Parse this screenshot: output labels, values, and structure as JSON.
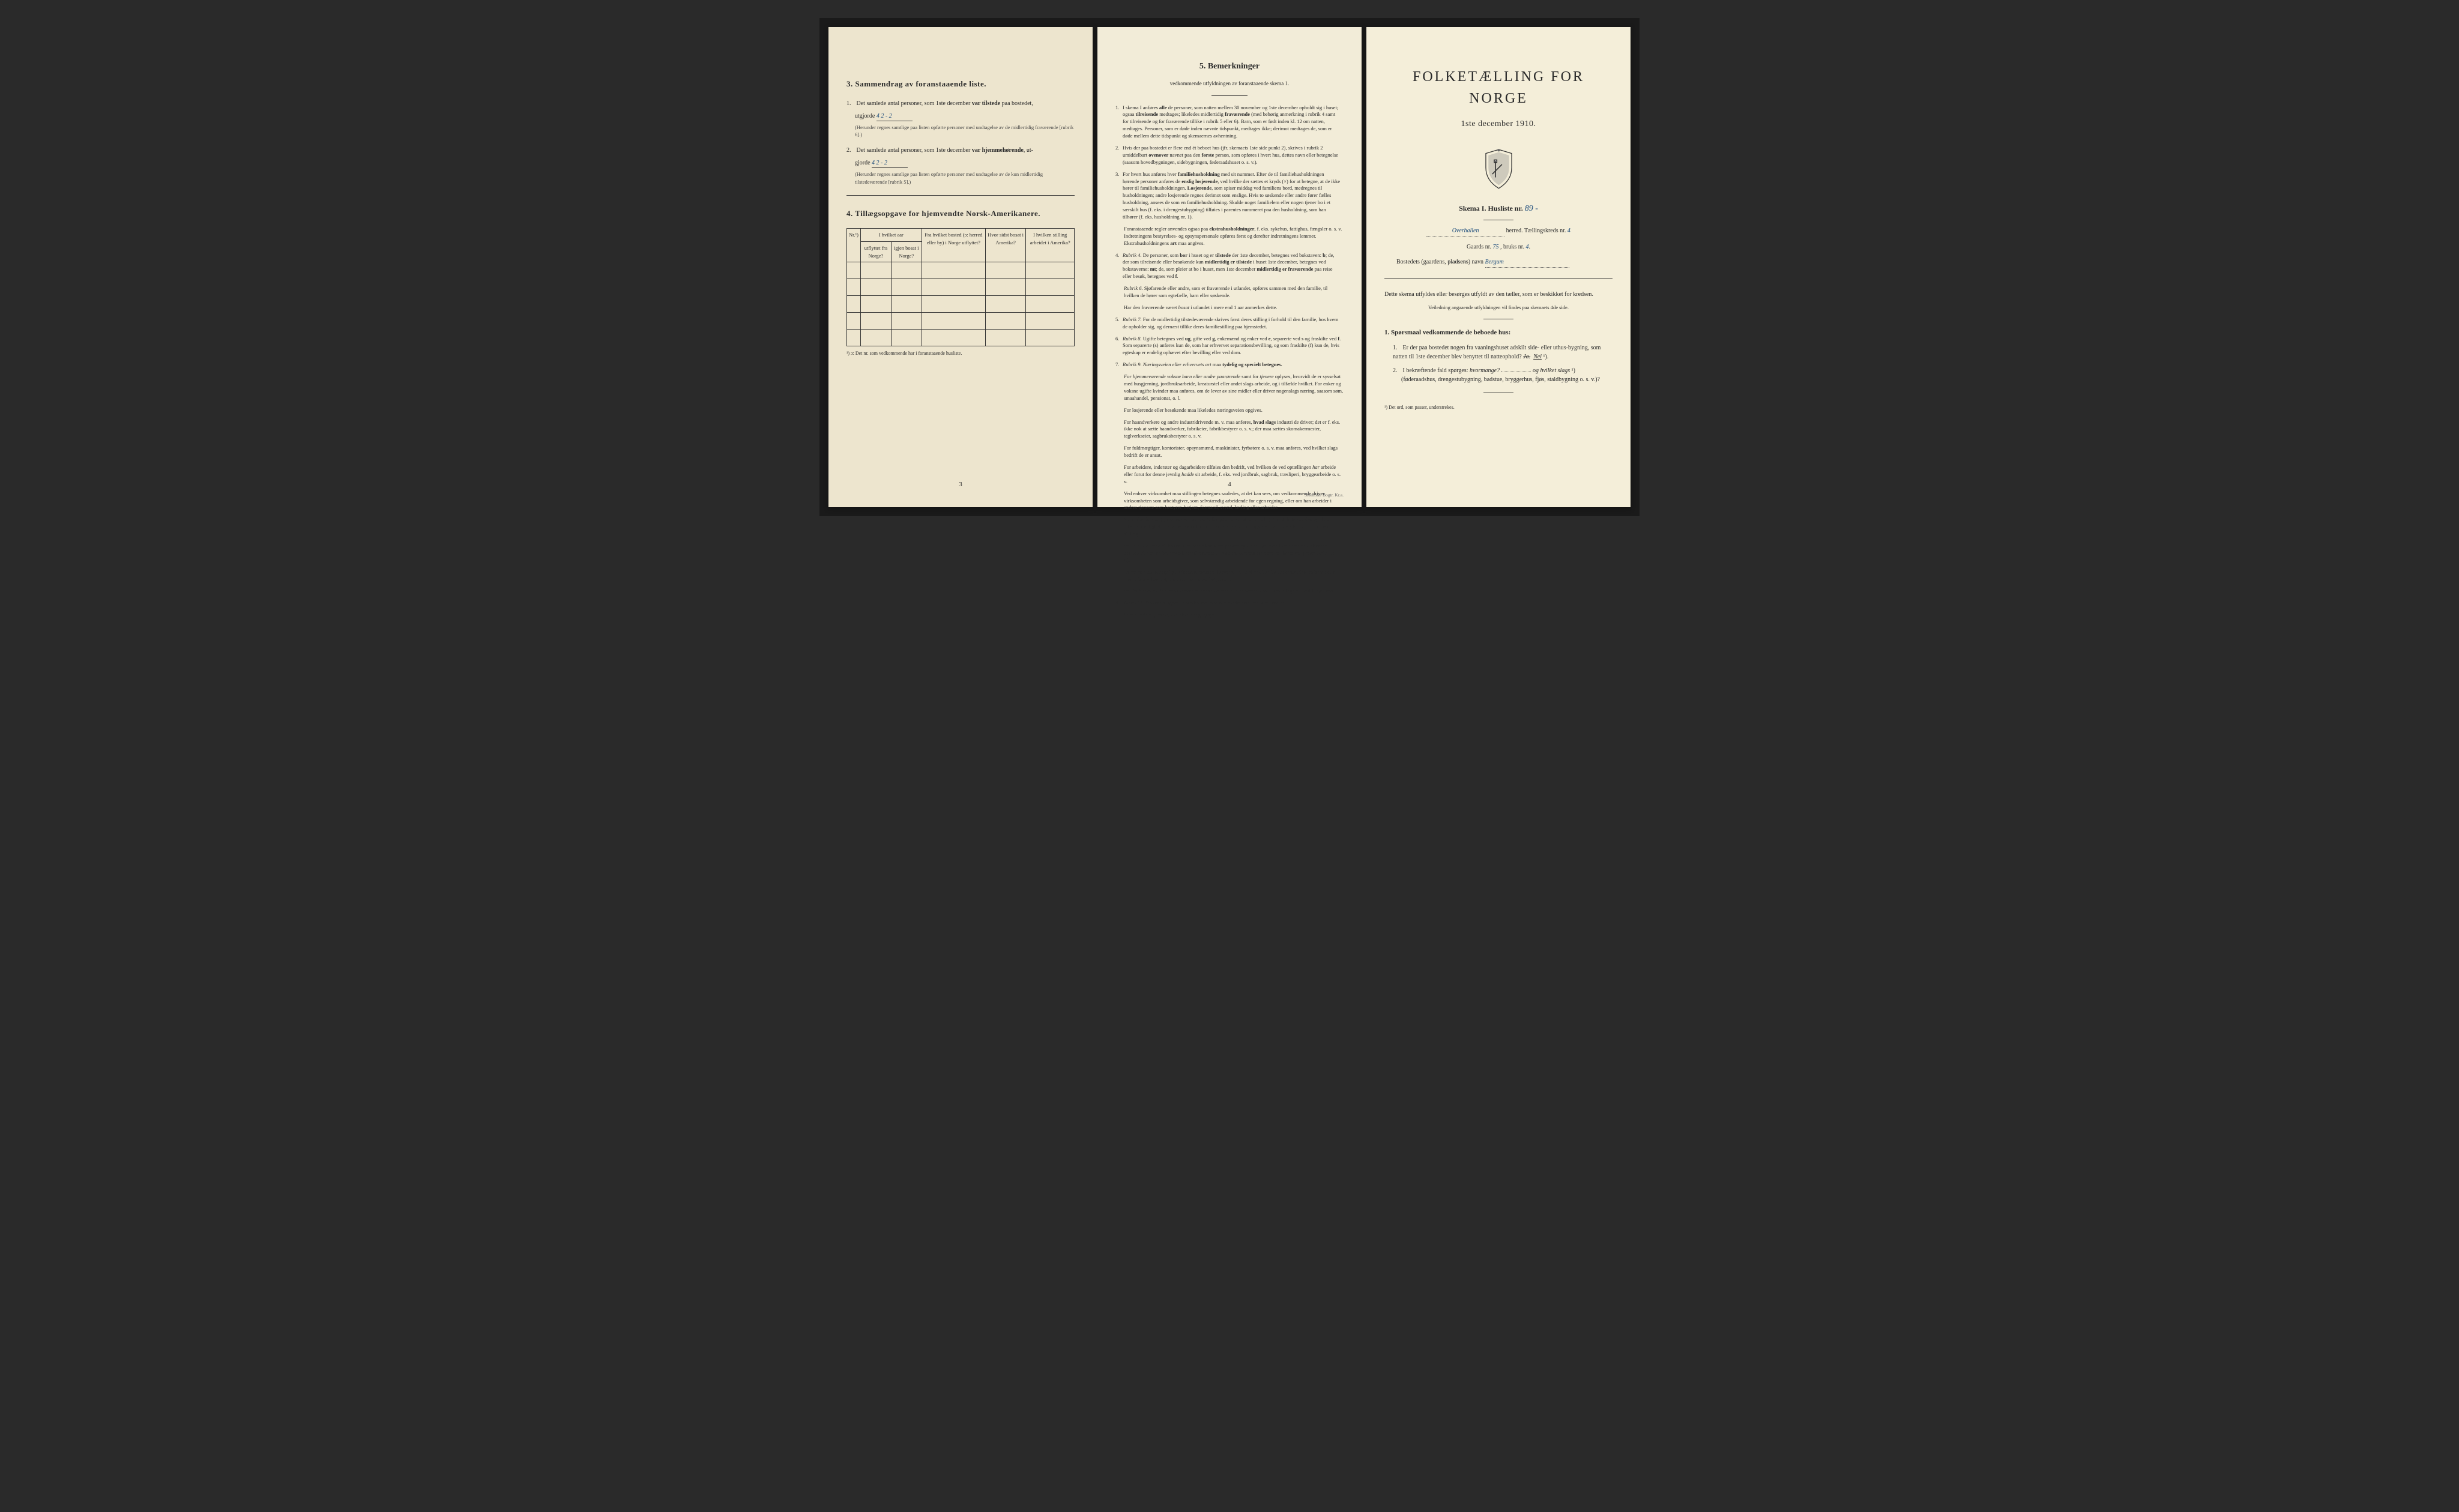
{
  "page3": {
    "section3_title": "3.  Sammendrag av foranstaaende liste.",
    "item1_a": "Det samlede antal personer, som 1ste december ",
    "item1_b": "var tilstede",
    "item1_c": " paa bostedet,",
    "item1_utgjorde": "utgjorde ",
    "item1_hand": "4  2 - 2",
    "item1_note": "(Herunder regnes samtlige paa listen opførte personer med undtagelse av de midlertidig fraværende [rubrik 6].)",
    "item2_a": "Det samlede antal personer, som 1ste december ",
    "item2_b": "var hjemmehørende",
    "item2_c": ", ut-",
    "item2_gjorde": "gjorde ",
    "item2_hand": "4  2 - 2",
    "item2_note": "(Herunder regnes samtlige paa listen opførte personer med undtagelse av de kun midlertidig tilstedeværende [rubrik 5].)",
    "section4_title": "4.  Tillægsopgave for hjemvendte Norsk-Amerikanere.",
    "th_nr": "Nr.¹)",
    "th_col1a": "I hvilket aar",
    "th_col1b": "utflyttet fra Norge?",
    "th_col1c": "igjen bosat i Norge?",
    "th_col2": "Fra hvilket bosted (ɔ: herred eller by) i Norge utflyttet?",
    "th_col3": "Hvor sidst bosat i Amerika?",
    "th_col4": "I hvilken stilling arbeidet i Amerika?",
    "footnote": "¹) ɔ: Det nr. som vedkommende har i foranstaaende husliste.",
    "page_num": "3"
  },
  "page4": {
    "title": "5.  Bemerkninger",
    "subtitle": "vedkommende utfyldningen av foranstaaende skema 1.",
    "items": [
      {
        "n": "1.",
        "t": "I skema I anføres <strong>alle</strong> de personer, som natten mellem 30 november og 1ste december opholdt sig i huset; ogsaa <strong>tilreisende</strong> medtages; likeledes midlertidig <strong>fraværende</strong> (med behørig anmerkning i rubrik 4 samt for tilreisende og for fraværende tillike i rubrik 5 eller 6). Barn, som er født inden kl. 12 om natten, medtages. Personer, som er døde inden nævnte tidspunkt, medtages ikke; derimot medtages de, som er døde mellem dette tidspunkt og skemaernes avhentning."
      },
      {
        "n": "2.",
        "t": "Hvis der paa bostedet er flere end ét beboet hus (jfr. skemaets 1ste side punkt 2), skrives i rubrik 2 umiddelbart <strong>ovenover</strong> navnet paa den <strong>første</strong> person, som opføres i hvert hus, dettes navn eller betegnelse (saasom hovedbygningen, sidebygningen, føderaadshuset o. s. v.)."
      },
      {
        "n": "3.",
        "t": "For hvert hus anføres hver <strong>familiehusholdning</strong> med sit nummer. Efter de til familiehusholdningen hørende personer anføres de <strong>enslig losjerende</strong>, ved hvilke der sættes et kryds (×) for at betegne, at de ikke hører til familiehusholdningen. <strong>Losjerende</strong>, som spiser middag ved familiens bord, medregnes til husholdningen; andre losjerende regnes derimot som enslige. Hvis to søskende eller andre fører fælles husholdning, ansees de som en familiehusholdning. Skulde noget familielem eller nogen tjener bo i et særskilt hus (f. eks. i drengestubygning) tilføies i parentes nummeret paa den husholdning, som han tilhører (f. eks. husholdning nr. 1).",
        "subs": [
          "Foranstaaende regler anvendes ogsaa paa <strong>ekstrahusholdninger</strong>, f. eks. sykehus, fattighus, fængsler o. s. v. Indretningens bestyrelses- og opsynspersonale opføres først og derefter indretningens lemmer. Ekstrahusholdningens <strong>art</strong> maa angives."
        ]
      },
      {
        "n": "4.",
        "t": "<em>Rubrik 4.</em> De personer, som <strong>bor</strong> i huset og er <strong>tilstede</strong> der 1ste december, betegnes ved bokstaven: <strong>b</strong>; de, der som tilreisende eller besøkende kun <strong>midlertidig er tilstede</strong> i huset 1ste december, betegnes ved bokstaverne: <strong>mt</strong>; de, som pleier at bo i huset, men 1ste december <strong>midlertidig er fraværende</strong> paa reise eller besøk, betegnes ved <strong>f</strong>.",
        "subs": [
          "<em>Rubrik 6.</em> Sjøfarende eller andre, som er fraværende i utlandet, opføres sammen med den familie, til hvilken de hører som egtefælle, barn eller søskende.",
          "Har den fraværende været <em>bosat</em> i utlandet i mere end 1 aar anmerkes dette."
        ]
      },
      {
        "n": "5.",
        "t": "<em>Rubrik 7.</em> For de midlertidig tilstedeværende skrives først deres stilling i forhold til den familie, hos hvem de opholder sig, og dernæst tillike deres familiestilling paa hjemstedet."
      },
      {
        "n": "6.",
        "t": "<em>Rubrik 8.</em> Ugifte betegnes ved <strong>ug</strong>, gifte ved <strong>g</strong>, enkemænd og enker ved <strong>e</strong>, separerte ved <strong>s</strong> og fraskilte ved <strong>f</strong>. Som separerte (s) anføres kun de, som har erhvervet separationsbevilling, og som fraskilte (f) kun de, hvis egteskap er endelig ophævet efter bevilling eller ved dom."
      },
      {
        "n": "7.",
        "t": "<em>Rubrik 9.</em> <em>Næringsveien eller erhvervets art</em> maa <strong>tydelig og specielt betegnes.</strong>",
        "subs": [
          "<em>For hjemmeværende voksne barn eller andre paarørende</em> samt for <em>tjenere</em> oplyses, hvorvidt de er sysselsat med husgjerning, jordbruksarbeide, kreaturstel eller andet slags arbeide, og i tilfælde hvilket. For enker og voksne ugifte kvinder maa anføres, om de lever av sine midler eller driver nogenslags næring, saasom søm, smaahandel, pensionat, o. l.",
          "For losjerende eller besøkende maa likeledes næringsveien opgives.",
          "For haandverkere og andre industridrivende m. v. maa anføres, <strong>hvad slags</strong> industri de driver; det er f. eks. ikke nok at sætte haandverker, fabrikeier, fabrikbestyrer o. s. v.; der maa sættes skomakermester, teglverkseier, sagbruksbestyrer o. s. v.",
          "For fuldmægtiger, kontorister, opsynsmænd, maskinister, fyrbøtere o. s. v. maa anføres, ved hvilket slags bedrift de er ansat.",
          "For arbeidere, inderster og dagarbeidere tilføies den bedrift, ved hvilken de ved optællingen <em>har</em> arbeide eller forut for denne jevnlig <em>hadde</em> sit arbeide, f. eks. ved jordbruk, sagbruk, træsliperi, bryggearbeide o. s. v.",
          "Ved enhver virksomhet maa stillingen betegnes saaledes, at det kan sees, om vedkommende driver virksomheten som arbeidsgiver, som selvstændig arbeidende for egen regning, eller om han arbeider i andres tjeneste som bestyrer, betjent, formand, svend, lærling eller arbeider.",
          "Som arbeidsledig (l) regnes de, som paa tællingstiden var uten arbeide (uten at dette skyldes sygdom, arbeidsudygtighet eller arbeidskonflikt) men som ellers sedvanligvis er i arbeide eller i anden underordnet stilling.",
          "Ved alle saadanne stillinger, som baade kan være private og offentlige, maa forholdets beskaffenhet angives (f. eks. embedsmand, bestillingsmand i statens, kommunens tjeneste, lærer ved privat skole o. s. v.).",
          "Lever man <em>hovedsagelig</em> av formue, pension, livrente, privat eller offentlig understøttelse, anføres dette, men tillike erhvervet, om det er av nogen betydning.",
          "Ved <em>forhenværende</em> næringsdrivende, embedsmænd o. s. v. sættes «fv» foran tidligere livsstillings navn."
        ]
      },
      {
        "n": "8.",
        "t": "<em>Rubrik 14.</em> Sinker og lignende aandssløve maa <em>ikke</em> medregnes som aandssvake.",
        "subs": [
          "Som <em>blinde</em> regnes de, som ikke har gangsyn."
        ]
      }
    ],
    "page_num": "4",
    "printer": "Steen'ske Bogtr. Kr.a."
  },
  "page1": {
    "main_title": "FOLKETÆLLING FOR NORGE",
    "sub_title": "1ste december 1910.",
    "skema_label": "Skema I.  Husliste nr.",
    "husliste_nr": "89 -",
    "herred_hand": "Overhallen",
    "herred_label": "herred.  Tællingskreds nr.",
    "kreds_nr": "4",
    "gaards_label": "Gaards nr.",
    "gaards_nr": "75",
    "bruks_label": ", bruks nr.",
    "bruks_nr": "4",
    "bosted_label": "Bostedets (gaardens, ",
    "bosted_struck": "pladsens",
    "bosted_label2": ") navn",
    "bosted_hand": "Bergum",
    "instruction": "Dette skema utfyldes eller besørges utfyldt av den tæller, som er beskikket for kredsen.",
    "instruction_sub": "Veiledning angaaende utfyldningen vil findes paa skemaets 4de side.",
    "q_heading": "1. Spørsmaal vedkommende de beboede hus:",
    "q1_a": "Er der paa bostedet nogen fra vaaningshuset adskilt side- eller uthus-bygning, som natten til 1ste december blev benyttet til natteophold?   ",
    "q1_ja": "Ja.",
    "q1_nei": "Nei",
    "q1_sup": " ¹).",
    "q2_a": "I bekræftende fald spørges: ",
    "q2_hvor": "hvormange?",
    "q2_og": "og hvilket slags",
    "q2_sup": " ¹)",
    "q2_b": "(føderaadshus, drengestubygning, badstue, bryggerhus, fjøs, staldbygning o. s. v.)?",
    "footnote1": "¹) Det ord, som passer, understrekes."
  },
  "colors": {
    "paper_bg": "#f0ead6",
    "text": "#2a2a2a",
    "handwriting": "#1a4a7a"
  }
}
